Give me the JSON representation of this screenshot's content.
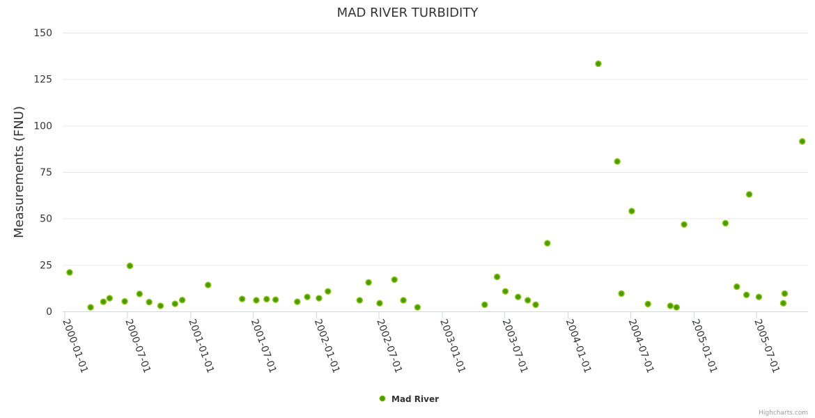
{
  "chart_data": {
    "type": "scatter",
    "title": "MAD RIVER TURBIDITY",
    "xlabel": "",
    "ylabel": "Measurements (FNU)",
    "ylim": [
      0,
      150
    ],
    "yticks": [
      0,
      25,
      50,
      75,
      100,
      125,
      150
    ],
    "xlim": [
      "1999-12-25",
      "2005-12-10"
    ],
    "xticks": [
      "2000-01-01",
      "2000-07-01",
      "2001-01-01",
      "2001-07-01",
      "2002-01-01",
      "2002-07-01",
      "2003-01-01",
      "2003-07-01",
      "2004-01-01",
      "2004-07-01",
      "2005-01-01",
      "2005-07-01"
    ],
    "grid": true,
    "legend_position": "bottom-center",
    "credits": "Highcharts.com",
    "colors": {
      "marker_fill": "#4b9b00",
      "marker_line": "#90c418",
      "grid": "#e6e6e6",
      "axis": "#ccd6eb",
      "text": "#333333"
    },
    "series": [
      {
        "name": "Mad River",
        "points": [
          [
            "2000-01-15",
            21
          ],
          [
            "2000-03-16",
            2.2
          ],
          [
            "2000-04-22",
            5.2
          ],
          [
            "2000-05-10",
            7.1
          ],
          [
            "2000-06-23",
            5.4
          ],
          [
            "2000-07-08",
            24.5
          ],
          [
            "2000-08-05",
            9.4
          ],
          [
            "2000-09-02",
            5
          ],
          [
            "2000-10-05",
            3
          ],
          [
            "2000-11-16",
            4.1
          ],
          [
            "2000-12-07",
            6.1
          ],
          [
            "2001-02-20",
            14.2
          ],
          [
            "2001-05-30",
            6.7
          ],
          [
            "2001-07-10",
            6
          ],
          [
            "2001-08-09",
            6.6
          ],
          [
            "2001-09-04",
            6.3
          ],
          [
            "2001-11-06",
            5.2
          ],
          [
            "2001-12-05",
            7.8
          ],
          [
            "2002-01-08",
            7.1
          ],
          [
            "2002-02-03",
            10.8
          ],
          [
            "2002-05-06",
            6
          ],
          [
            "2002-06-01",
            15.6
          ],
          [
            "2002-07-03",
            4.4
          ],
          [
            "2002-08-15",
            17.1
          ],
          [
            "2002-09-10",
            6
          ],
          [
            "2002-10-21",
            2.2
          ],
          [
            "2003-05-04",
            3.6
          ],
          [
            "2003-06-09",
            18.6
          ],
          [
            "2003-07-03",
            10.8
          ],
          [
            "2003-08-09",
            7.8
          ],
          [
            "2003-09-06",
            6
          ],
          [
            "2003-09-29",
            3.6
          ],
          [
            "2003-11-02",
            36.7
          ],
          [
            "2004-03-29",
            133.3
          ],
          [
            "2004-05-23",
            80.7
          ],
          [
            "2004-06-04",
            9.6
          ],
          [
            "2004-07-04",
            54
          ],
          [
            "2004-08-20",
            4
          ],
          [
            "2004-10-24",
            3
          ],
          [
            "2004-11-11",
            2.2
          ],
          [
            "2004-12-03",
            46.8
          ],
          [
            "2005-04-02",
            47.5
          ],
          [
            "2005-05-05",
            13.3
          ],
          [
            "2005-06-02",
            8.9
          ],
          [
            "2005-06-10",
            63
          ],
          [
            "2005-07-08",
            7.8
          ],
          [
            "2005-09-17",
            4.4
          ],
          [
            "2005-09-21",
            9.6
          ],
          [
            "2005-11-11",
            91.5
          ]
        ]
      }
    ]
  }
}
